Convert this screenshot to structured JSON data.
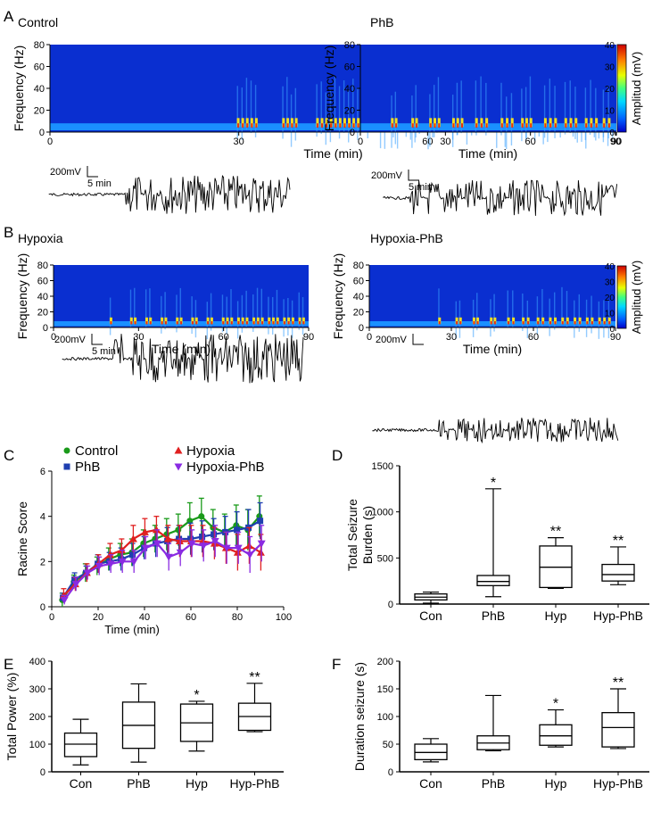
{
  "colors": {
    "spec_bg": "#0a2fd0",
    "control": "#1a9a1a",
    "phb": "#1f3fb0",
    "hypoxia": "#e02020",
    "hypoxia_phb": "#8a2be2"
  },
  "spectrograms": [
    {
      "label": "A",
      "title": "Control",
      "ylabel": "Frequency (Hz)",
      "xlabel": "Time (min)",
      "xticks": [
        "0",
        "30",
        "60",
        "90"
      ],
      "yticks": [
        "0",
        "20",
        "40",
        "60",
        "80"
      ],
      "scale_v": "200mV",
      "scale_t": "5 min"
    },
    {
      "label": "",
      "title": "PhB",
      "ylabel": "Frequency (Hz)",
      "xlabel": "Time (min)",
      "xticks": [
        "0",
        "30",
        "60",
        "90"
      ],
      "yticks": [
        "0",
        "20",
        "40",
        "60",
        "80"
      ],
      "scale_v": "200mV",
      "scale_t": "5 min",
      "colorbar": {
        "label": "Amplitud (mV)",
        "ticks": [
          "0",
          "10",
          "20",
          "30",
          "40"
        ]
      }
    },
    {
      "label": "B",
      "title": "Hypoxia",
      "ylabel": "Frequency (Hz)",
      "xlabel": "Time (min)",
      "xticks": [
        "0",
        "30",
        "60",
        "90"
      ],
      "yticks": [
        "0",
        "20",
        "40",
        "60",
        "80"
      ],
      "scale_v": "200mV",
      "scale_t": "5 min"
    },
    {
      "label": "",
      "title": "Hypoxia-PhB",
      "ylabel": "Frequency (Hz)",
      "xlabel": "Time (min)",
      "xticks": [
        "0",
        "30",
        "60",
        "90"
      ],
      "yticks": [
        "0",
        "20",
        "40",
        "60",
        "80"
      ],
      "scale_v": "200mV",
      "scale_t": "",
      "colorbar": {
        "label": "Amplitud (mV)",
        "ticks": [
          "0",
          "10",
          "20",
          "30",
          "40"
        ]
      }
    }
  ],
  "panel_labels": {
    "c": "C",
    "d": "D",
    "e": "E",
    "f": "F"
  },
  "chart_data": [
    {
      "type": "line",
      "panel": "C",
      "xlabel": "Time (min)",
      "ylabel": "Racine  Score",
      "xlim": [
        0,
        100
      ],
      "ylim": [
        0,
        6
      ],
      "xticks": [
        "0",
        "20",
        "40",
        "60",
        "80",
        "100"
      ],
      "yticks": [
        "0",
        "2",
        "4",
        "6"
      ],
      "x": [
        5,
        10,
        15,
        20,
        25,
        30,
        35,
        40,
        45,
        50,
        55,
        60,
        65,
        70,
        75,
        80,
        85,
        90
      ],
      "series": [
        {
          "name": "Control",
          "marker": "circle",
          "values": [
            0.3,
            1.1,
            1.5,
            1.8,
            2.1,
            2.3,
            2.4,
            2.8,
            3.0,
            3.2,
            3.4,
            3.8,
            4.0,
            3.5,
            3.3,
            3.6,
            3.4,
            4.0
          ],
          "errors": [
            0.3,
            0.3,
            0.4,
            0.4,
            0.5,
            0.5,
            0.6,
            0.6,
            0.6,
            0.7,
            0.7,
            0.8,
            0.8,
            0.8,
            0.8,
            0.9,
            0.9,
            0.9
          ]
        },
        {
          "name": "PhB",
          "marker": "square",
          "values": [
            0.4,
            1.2,
            1.5,
            1.9,
            2.0,
            2.1,
            2.3,
            2.6,
            2.8,
            2.9,
            3.0,
            3.0,
            3.1,
            3.2,
            3.3,
            3.4,
            3.5,
            3.8
          ],
          "errors": [
            0.2,
            0.3,
            0.3,
            0.4,
            0.4,
            0.5,
            0.5,
            0.5,
            0.6,
            0.6,
            0.6,
            0.7,
            0.7,
            0.7,
            0.7,
            0.8,
            0.8,
            0.8
          ]
        },
        {
          "name": "Hypoxia",
          "marker": "triangle-up",
          "values": [
            0.5,
            1.0,
            1.5,
            1.9,
            2.3,
            2.5,
            3.0,
            3.3,
            3.4,
            3.0,
            2.9,
            2.9,
            2.9,
            2.8,
            2.6,
            2.4,
            2.7,
            2.4
          ],
          "errors": [
            0.3,
            0.3,
            0.4,
            0.4,
            0.5,
            0.5,
            0.6,
            0.6,
            0.6,
            0.6,
            0.7,
            0.7,
            0.7,
            0.7,
            0.7,
            0.8,
            0.8,
            0.8
          ]
        },
        {
          "name": "Hypoxia-PhB",
          "marker": "triangle-down",
          "values": [
            0.3,
            1.0,
            1.5,
            1.8,
            1.9,
            2.0,
            2.0,
            2.6,
            2.8,
            2.2,
            2.4,
            2.8,
            2.7,
            2.9,
            2.6,
            2.6,
            2.3,
            2.8
          ],
          "errors": [
            0.2,
            0.3,
            0.3,
            0.4,
            0.4,
            0.5,
            0.5,
            0.5,
            0.6,
            0.6,
            0.6,
            0.6,
            0.7,
            0.7,
            0.7,
            0.7,
            0.8,
            0.8
          ]
        }
      ],
      "legend_position": "top"
    },
    {
      "type": "box",
      "panel": "D",
      "ylabel_lines": [
        "Total Seizure",
        "Burden (s)"
      ],
      "ylim": [
        0,
        1500
      ],
      "yticks": [
        "0",
        "500",
        "1000",
        "1500"
      ],
      "categories": [
        "Con",
        "PhB",
        "Hyp",
        "Hyp-PhB"
      ],
      "boxes": [
        {
          "min": 10,
          "q1": 45,
          "median": 75,
          "q3": 110,
          "max": 130,
          "sig": ""
        },
        {
          "min": 80,
          "q1": 200,
          "median": 245,
          "q3": 310,
          "max": 1250,
          "sig": "*"
        },
        {
          "min": 170,
          "q1": 180,
          "median": 400,
          "q3": 630,
          "max": 720,
          "sig": "**"
        },
        {
          "min": 210,
          "q1": 250,
          "median": 320,
          "q3": 430,
          "max": 620,
          "sig": "**"
        }
      ]
    },
    {
      "type": "box",
      "panel": "E",
      "ylabel_lines": [
        "Total Power (%)"
      ],
      "ylim": [
        0,
        400
      ],
      "yticks": [
        "0",
        "100",
        "200",
        "300",
        "400"
      ],
      "categories": [
        "Con",
        "PhB",
        "Hyp",
        "Hyp-PhB"
      ],
      "boxes": [
        {
          "min": 25,
          "q1": 55,
          "median": 100,
          "q3": 140,
          "max": 190,
          "sig": ""
        },
        {
          "min": 35,
          "q1": 85,
          "median": 168,
          "q3": 252,
          "max": 318,
          "sig": ""
        },
        {
          "min": 75,
          "q1": 110,
          "median": 177,
          "q3": 245,
          "max": 255,
          "sig": "*"
        },
        {
          "min": 145,
          "q1": 150,
          "median": 200,
          "q3": 248,
          "max": 320,
          "sig": "**"
        }
      ]
    },
    {
      "type": "box",
      "panel": "F",
      "ylabel_lines": [
        "Duration seizure (s)"
      ],
      "ylim": [
        0,
        200
      ],
      "yticks": [
        "0",
        "50",
        "100",
        "150",
        "200"
      ],
      "categories": [
        "Con",
        "PhB",
        "Hyp",
        "Hyp-PhB"
      ],
      "boxes": [
        {
          "min": 18,
          "q1": 22,
          "median": 35,
          "q3": 50,
          "max": 60,
          "sig": ""
        },
        {
          "min": 38,
          "q1": 40,
          "median": 52,
          "q3": 65,
          "max": 138,
          "sig": ""
        },
        {
          "min": 45,
          "q1": 48,
          "median": 65,
          "q3": 85,
          "max": 112,
          "sig": "*"
        },
        {
          "min": 42,
          "q1": 45,
          "median": 80,
          "q3": 107,
          "max": 150,
          "sig": "**"
        }
      ]
    }
  ]
}
